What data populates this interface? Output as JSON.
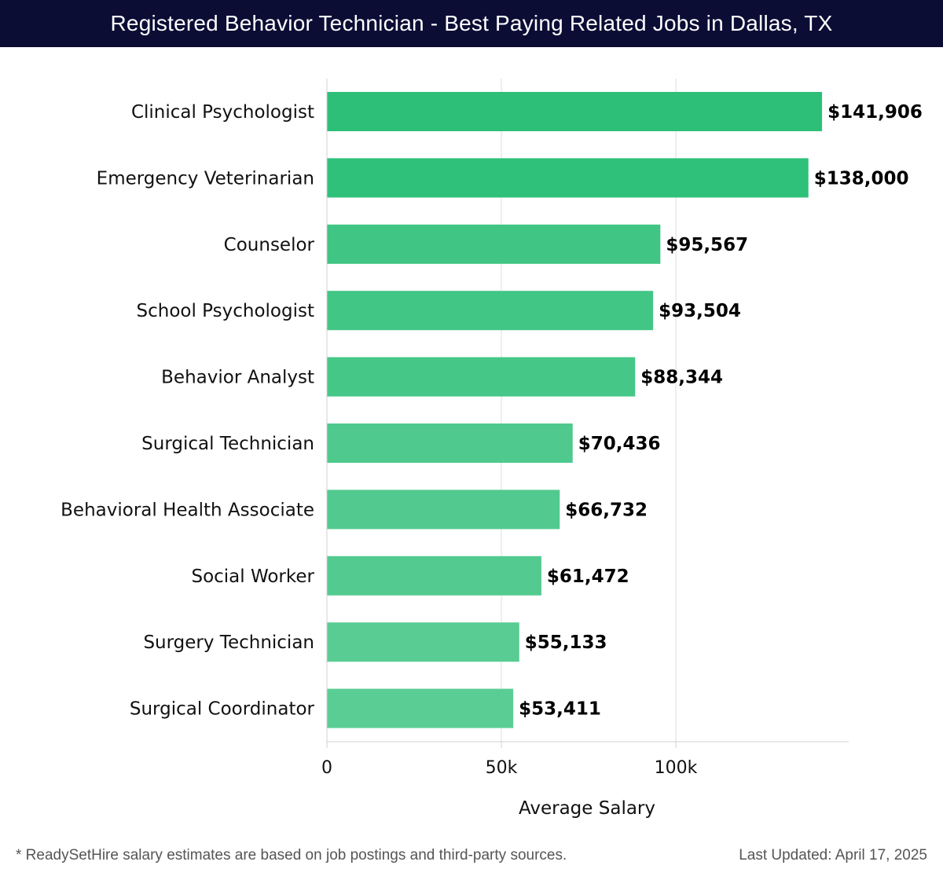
{
  "header": {
    "title": "Registered Behavior Technician - Best Paying Related Jobs in Dallas, TX",
    "background": "#0c0d35"
  },
  "chart_data": {
    "type": "bar",
    "orientation": "horizontal",
    "title": "Registered Behavior Technician - Best Paying Related Jobs in Dallas, TX",
    "xlabel": "Average Salary",
    "ylabel": "",
    "xlim": [
      0,
      150000
    ],
    "xticks": [
      0,
      50000,
      100000
    ],
    "xtick_labels": [
      "0",
      "50k",
      "100k"
    ],
    "grid": true,
    "categories": [
      "Clinical Psychologist",
      "Emergency Veterinarian",
      "Counselor",
      "School Psychologist",
      "Behavior Analyst",
      "Surgical Technician",
      "Behavioral Health Associate",
      "Social Worker",
      "Surgery Technician",
      "Surgical Coordinator"
    ],
    "values": [
      141906,
      138000,
      95567,
      93504,
      88344,
      70436,
      66732,
      61472,
      55133,
      53411
    ],
    "value_labels": [
      "$141,906",
      "$138,000",
      "$95,567",
      "$93,504",
      "$88,344",
      "$70,436",
      "$66,732",
      "$61,472",
      "$55,133",
      "$53,411"
    ],
    "bar_colors": [
      "#2dbf78",
      "#2fc17a",
      "#40c584",
      "#42c686",
      "#45c788",
      "#4fc98d",
      "#52ca8f",
      "#53cb90",
      "#58cc93",
      "#5acd94"
    ]
  },
  "footer": {
    "note": "* ReadySetHire salary estimates are based on job postings and third-party sources.",
    "updated": "Last Updated: April 17, 2025"
  }
}
